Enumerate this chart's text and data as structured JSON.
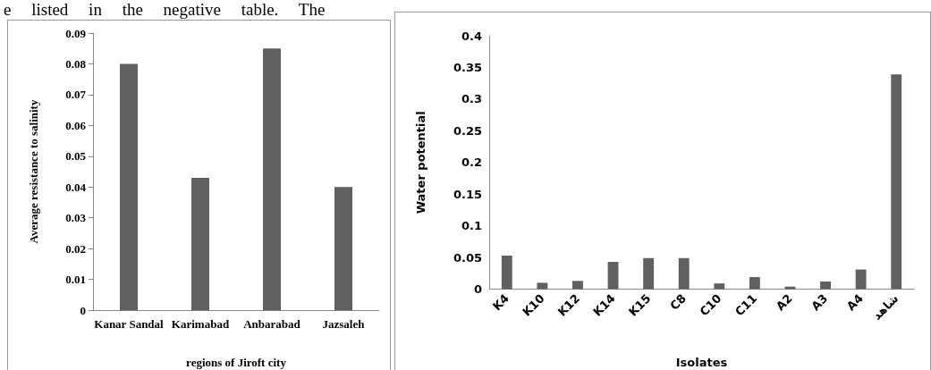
{
  "chart_data": [
    {
      "type": "other",
      "annotations": [
        "e listed in the negative table. The"
      ]
    },
    {
      "type": "bar",
      "xlabel": "regions of Jiroft city",
      "ylabel": "Average resistance to salinity",
      "categories": [
        "Kanar Sandal",
        "Karimabad",
        "Anbarabad",
        "Jazsaleh"
      ],
      "values": [
        0.08,
        0.043,
        0.085,
        0.04
      ],
      "color": "#606060",
      "ylim": [
        0,
        0.09
      ],
      "yticks": [
        0,
        0.01,
        0.02,
        0.03,
        0.04,
        0.05,
        0.06,
        0.07,
        0.08,
        0.09
      ]
    },
    {
      "type": "bar",
      "xlabel": "Isolates",
      "ylabel": "Water potential",
      "categories": [
        "K4",
        "K10",
        "K12",
        "K14",
        "K15",
        "C8",
        "C10",
        "C11",
        "A2",
        "A3",
        "A4",
        "شاهد"
      ],
      "values": [
        0.053,
        0.01,
        0.013,
        0.043,
        0.049,
        0.049,
        0.009,
        0.019,
        0.004,
        0.012,
        0.031,
        0.339
      ],
      "color": "#606060",
      "ylim": [
        0,
        0.4
      ],
      "yticks": [
        0,
        0.05,
        0.1,
        0.15,
        0.2,
        0.25,
        0.3,
        0.35,
        0.4
      ]
    }
  ]
}
